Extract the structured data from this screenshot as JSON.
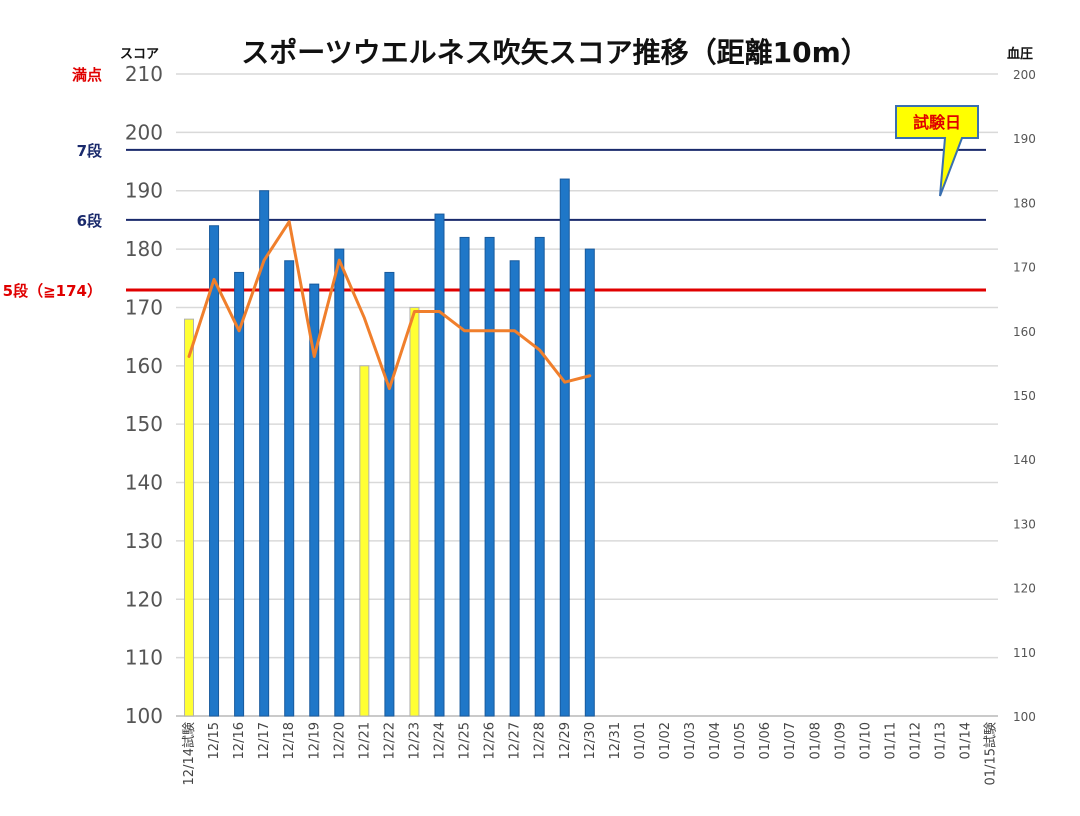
{
  "chart_data": {
    "type": "bar",
    "title": "スポーツウエルネス吹矢スコア推移（距離10m）",
    "ylabel": "スコア",
    "y2label": "血圧",
    "ylim": [
      100,
      210
    ],
    "y2lim": [
      100,
      200
    ],
    "yticks": [
      "100",
      "110",
      "120",
      "130",
      "140",
      "150",
      "160",
      "170",
      "180",
      "190",
      "200",
      "210"
    ],
    "y2ticks": [
      "100",
      "110",
      "120",
      "130",
      "140",
      "150",
      "160",
      "170",
      "180",
      "190",
      "200"
    ],
    "grid": true,
    "categories": [
      "12/14試験",
      "12/15",
      "12/16",
      "12/17",
      "12/18",
      "12/19",
      "12/20",
      "12/21",
      "12/22",
      "12/23",
      "12/24",
      "12/25",
      "12/26",
      "12/27",
      "12/28",
      "12/29",
      "12/30",
      "12/31",
      "01/01",
      "01/02",
      "01/03",
      "01/04",
      "01/05",
      "01/06",
      "01/07",
      "01/08",
      "01/09",
      "01/10",
      "01/11",
      "01/12",
      "01/13",
      "01/14",
      "01/15試験"
    ],
    "series": [
      {
        "kind": "bar",
        "axis": "left",
        "values": [
          168,
          184,
          176,
          190,
          178,
          174,
          180,
          160,
          176,
          170,
          186,
          182,
          182,
          178,
          182,
          192,
          180,
          null,
          null,
          null,
          null,
          null,
          null,
          null,
          null,
          null,
          null,
          null,
          null,
          null,
          null,
          null,
          null
        ],
        "colors": [
          "#ffff33",
          "#1f77c8",
          "#1f77c8",
          "#1f77c8",
          "#1f77c8",
          "#1f77c8",
          "#1f77c8",
          "#ffff33",
          "#1f77c8",
          "#ffff33",
          "#1f77c8",
          "#1f77c8",
          "#1f77c8",
          "#1f77c8",
          "#1f77c8",
          "#1f77c8",
          "#1f77c8"
        ]
      },
      {
        "kind": "line",
        "axis": "right",
        "color": "#f07f2c",
        "values": [
          156,
          168,
          160,
          171,
          177,
          156,
          171,
          162,
          151,
          163,
          163,
          160,
          160,
          160,
          157,
          152,
          153,
          null,
          null,
          null,
          null,
          null,
          null,
          null,
          null,
          null,
          null,
          null,
          null,
          null,
          null,
          null,
          null
        ]
      }
    ],
    "reference_lines": [
      {
        "label": "満点",
        "value": 210,
        "color": "#e00000",
        "draw_line": false
      },
      {
        "label": "7段",
        "value": 197,
        "color": "#1a2a6c",
        "draw_line": true
      },
      {
        "label": "6段",
        "value": 185,
        "color": "#1a2a6c",
        "draw_line": true
      },
      {
        "label": "5段（≧174）",
        "value": 173,
        "color": "#e00000",
        "draw_line": true
      }
    ],
    "callout": {
      "text": "試験日",
      "fill": "#ffff00",
      "border": "#3a6fb0",
      "text_color": "#e00000"
    }
  }
}
